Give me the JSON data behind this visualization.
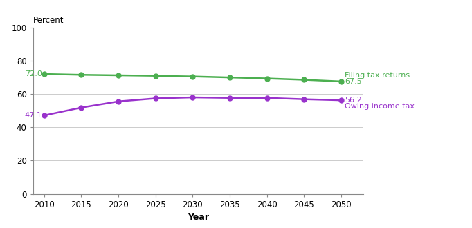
{
  "years": [
    2010,
    2015,
    2020,
    2025,
    2030,
    2035,
    2040,
    2045,
    2050
  ],
  "filing_tax_returns": [
    72.0,
    71.5,
    71.2,
    70.9,
    70.5,
    69.9,
    69.3,
    68.5,
    67.5
  ],
  "owing_income_tax": [
    47.1,
    51.8,
    55.5,
    57.3,
    57.9,
    57.6,
    57.6,
    56.8,
    56.2
  ],
  "filing_color": "#4CAF50",
  "owing_color": "#9932CC",
  "filing_label": "Filing tax returns",
  "owing_label": "Owing income tax",
  "filing_start_label": "72.0",
  "filing_end_label": "67.5",
  "owing_start_label": "47.1",
  "owing_end_label": "56.2",
  "xlabel": "Year",
  "percent_label": "Percent",
  "ylim": [
    0,
    100
  ],
  "yticks": [
    0,
    20,
    40,
    60,
    80,
    100
  ],
  "xlim": [
    2008.5,
    2053
  ],
  "xticks": [
    2010,
    2015,
    2020,
    2025,
    2030,
    2035,
    2040,
    2045,
    2050
  ],
  "grid_color": "#cccccc",
  "background_color": "#ffffff",
  "line_width": 1.8,
  "marker_size": 5
}
